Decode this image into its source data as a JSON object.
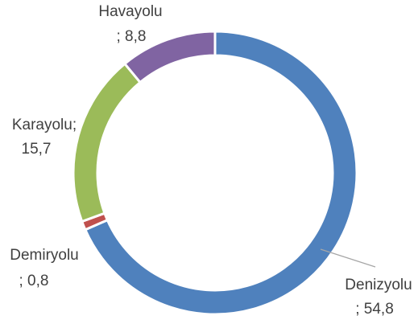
{
  "chart_data": {
    "type": "donut",
    "categories": [
      "Denizyolu",
      "Demiryolu",
      "Karayolu;",
      "Havayolu"
    ],
    "values": [
      54.8,
      0.8,
      15.7,
      8.8
    ],
    "value_labels": [
      "; 54,8",
      "; 0,8",
      "15,7",
      "; 8,8"
    ],
    "colors": [
      "#4f81bd",
      "#c0504d",
      "#9bbb59",
      "#8064a2"
    ]
  }
}
